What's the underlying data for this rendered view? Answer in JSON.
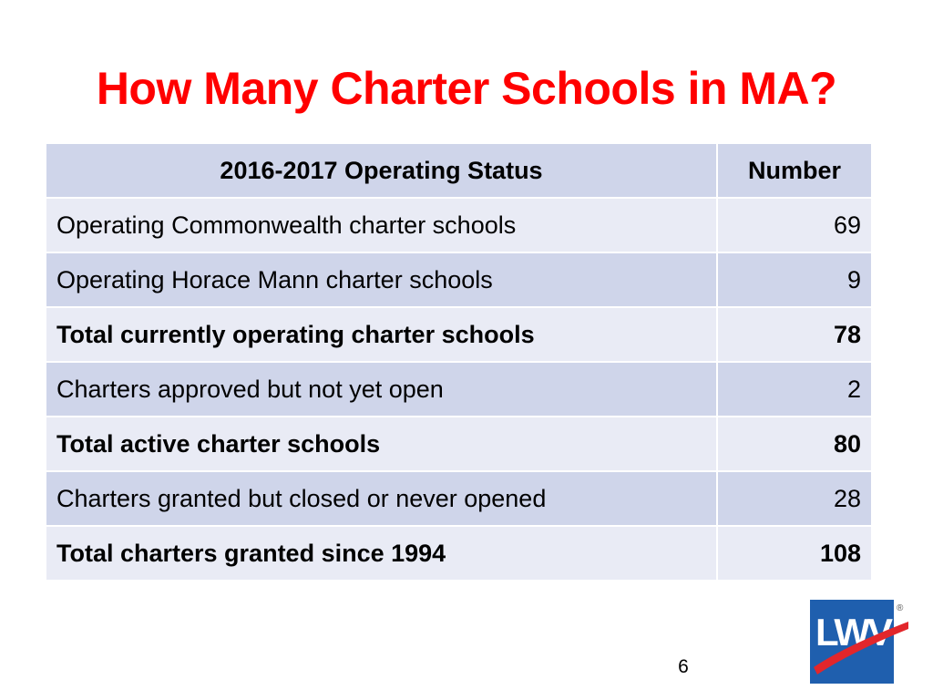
{
  "slide": {
    "title": "How Many Charter Schools in MA?",
    "page_number": "6"
  },
  "table": {
    "headers": {
      "status": "2016-2017 Operating Status",
      "number": "Number"
    },
    "rows": [
      {
        "label": "Operating Commonwealth charter schools",
        "value": "69",
        "bold": false
      },
      {
        "label": "Operating Horace Mann charter schools",
        "value": "9",
        "bold": false
      },
      {
        "label": "Total currently operating charter schools",
        "value": "78",
        "bold": true
      },
      {
        "label": "Charters approved but not yet open",
        "value": "2",
        "bold": false
      },
      {
        "label": "Total active charter schools",
        "value": "80",
        "bold": true
      },
      {
        "label": "Charters granted but closed or never opened",
        "value": "28",
        "bold": false
      },
      {
        "label": "Total charters granted since 1994",
        "value": "108",
        "bold": true
      }
    ]
  },
  "logo": {
    "text": "LWV",
    "mark": "®",
    "icon": "lwv-logo-icon"
  },
  "colors": {
    "title": "#ff0000",
    "header_bg": "#cfd5ea",
    "row_light": "#e9ebf5",
    "row_dark": "#cfd5ea",
    "logo_blue": "#1f5fae",
    "logo_red": "#e2262b"
  }
}
